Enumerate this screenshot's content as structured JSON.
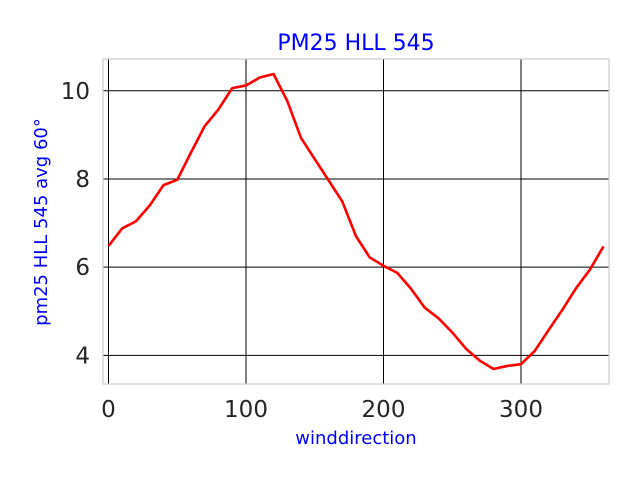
{
  "chart_data": {
    "type": "line",
    "title": "PM25 HLL 545",
    "xlabel": "winddirection",
    "ylabel": "pm25 HLL 545 avg 60°",
    "xlim": [
      -4,
      364
    ],
    "ylim": [
      3.35,
      10.72
    ],
    "x_ticks": [
      0,
      100,
      200,
      300
    ],
    "y_ticks": [
      4,
      6,
      8,
      10
    ],
    "x_tick_labels": [
      "0",
      "100",
      "200",
      "300"
    ],
    "y_tick_labels": [
      "4",
      "6",
      "8",
      "10"
    ],
    "grid": true,
    "series": [
      {
        "color": "#ff0000",
        "x": [
          0,
          10,
          20,
          30,
          40,
          50,
          60,
          70,
          80,
          90,
          100,
          110,
          120,
          130,
          140,
          150,
          160,
          170,
          180,
          190,
          200,
          210,
          220,
          230,
          240,
          250,
          260,
          270,
          280,
          290,
          300,
          310,
          320,
          330,
          340,
          350,
          360
        ],
        "values": [
          6.48,
          6.88,
          7.04,
          7.4,
          7.86,
          7.98,
          8.6,
          9.2,
          9.58,
          10.06,
          10.12,
          10.3,
          10.38,
          9.77,
          8.93,
          8.45,
          7.97,
          7.49,
          6.7,
          6.22,
          6.03,
          5.87,
          5.51,
          5.08,
          4.84,
          4.52,
          4.15,
          3.88,
          3.69,
          3.76,
          3.8,
          4.1,
          4.57,
          5.03,
          5.52,
          5.94,
          6.47
        ]
      }
    ]
  }
}
